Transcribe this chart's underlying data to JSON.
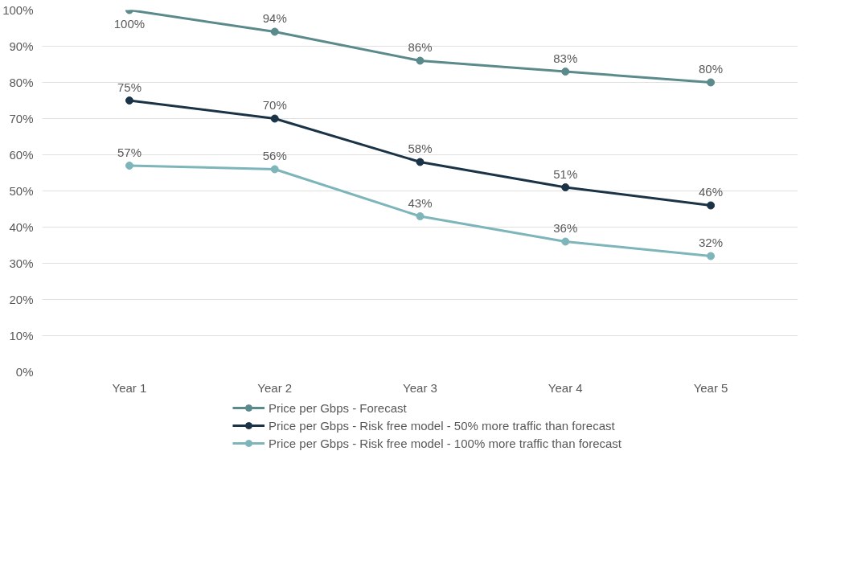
{
  "chart_data": {
    "type": "line",
    "categories": [
      "Year 1",
      "Year 2",
      "Year 3",
      "Year 4",
      "Year 5"
    ],
    "series": [
      {
        "name": "Price per Gbps - Forecast",
        "color": "#5b8a8c",
        "values": [
          100,
          94,
          86,
          83,
          80
        ],
        "value_labels": [
          "100%",
          "94%",
          "86%",
          "83%",
          "80%"
        ]
      },
      {
        "name": "Price per Gbps - Risk free model - 50% more traffic than forecast",
        "color": "#1b3347",
        "values": [
          75,
          70,
          58,
          51,
          46
        ],
        "value_labels": [
          "75%",
          "70%",
          "58%",
          "51%",
          "46%"
        ]
      },
      {
        "name": "Price per Gbps - Risk free model - 100% more traffic than forecast",
        "color": "#7db5ba",
        "values": [
          57,
          56,
          43,
          36,
          32
        ],
        "value_labels": [
          "57%",
          "56%",
          "43%",
          "36%",
          "32%"
        ]
      }
    ],
    "ylim": [
      0,
      100
    ],
    "yticks": [
      {
        "value": 0,
        "label": "0%"
      },
      {
        "value": 10,
        "label": "10%"
      },
      {
        "value": 20,
        "label": "20%"
      },
      {
        "value": 30,
        "label": "30%"
      },
      {
        "value": 40,
        "label": "40%"
      },
      {
        "value": 50,
        "label": "50%"
      },
      {
        "value": 60,
        "label": "60%"
      },
      {
        "value": 70,
        "label": "70%"
      },
      {
        "value": 80,
        "label": "80%"
      },
      {
        "value": 90,
        "label": "90%"
      },
      {
        "value": 100,
        "label": "100%"
      }
    ],
    "grid": "y",
    "legend": "bottom",
    "marker": "circle",
    "line_style": "solid"
  }
}
